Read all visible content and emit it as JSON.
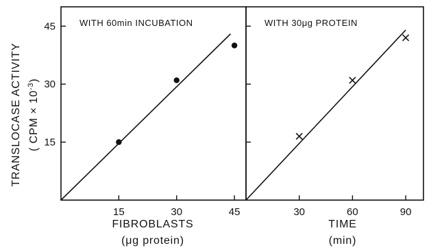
{
  "y_axis": {
    "label_line1": "TRANSLOCASE ACTIVITY",
    "label_line2": "( CPM × 10",
    "label_exp": "-3",
    "label_close": ")"
  },
  "chart_data": [
    {
      "type": "scatter",
      "title": "WITH 60min INCUBATION",
      "xlabel_line1": "FIBROBLASTS",
      "xlabel_line2": "(μg protein)",
      "ylabel": "TRANSLOCASE ACTIVITY (CPM × 10-3)",
      "xlim": [
        0,
        48
      ],
      "ylim": [
        0,
        50
      ],
      "xticks": [
        15,
        30,
        45
      ],
      "yticks": [
        15,
        30,
        45
      ],
      "marker": "filled-circle",
      "points": [
        {
          "x": 15,
          "y": 15
        },
        {
          "x": 30,
          "y": 31
        },
        {
          "x": 45,
          "y": 40
        }
      ],
      "fit_line": [
        [
          0,
          0
        ],
        [
          44,
          43
        ]
      ]
    },
    {
      "type": "scatter",
      "title": "WITH 30μg PROTEIN",
      "xlabel_line1": "TIME",
      "xlabel_line2": "(min)",
      "xlim": [
        0,
        100
      ],
      "ylim": [
        0,
        50
      ],
      "xticks": [
        30,
        60,
        90
      ],
      "yticks": [
        15,
        30,
        45
      ],
      "marker": "cross",
      "points": [
        {
          "x": 30,
          "y": 16.5
        },
        {
          "x": 60,
          "y": 31
        },
        {
          "x": 90,
          "y": 42
        }
      ],
      "fit_line": [
        [
          0,
          0
        ],
        [
          90,
          44
        ]
      ]
    }
  ]
}
